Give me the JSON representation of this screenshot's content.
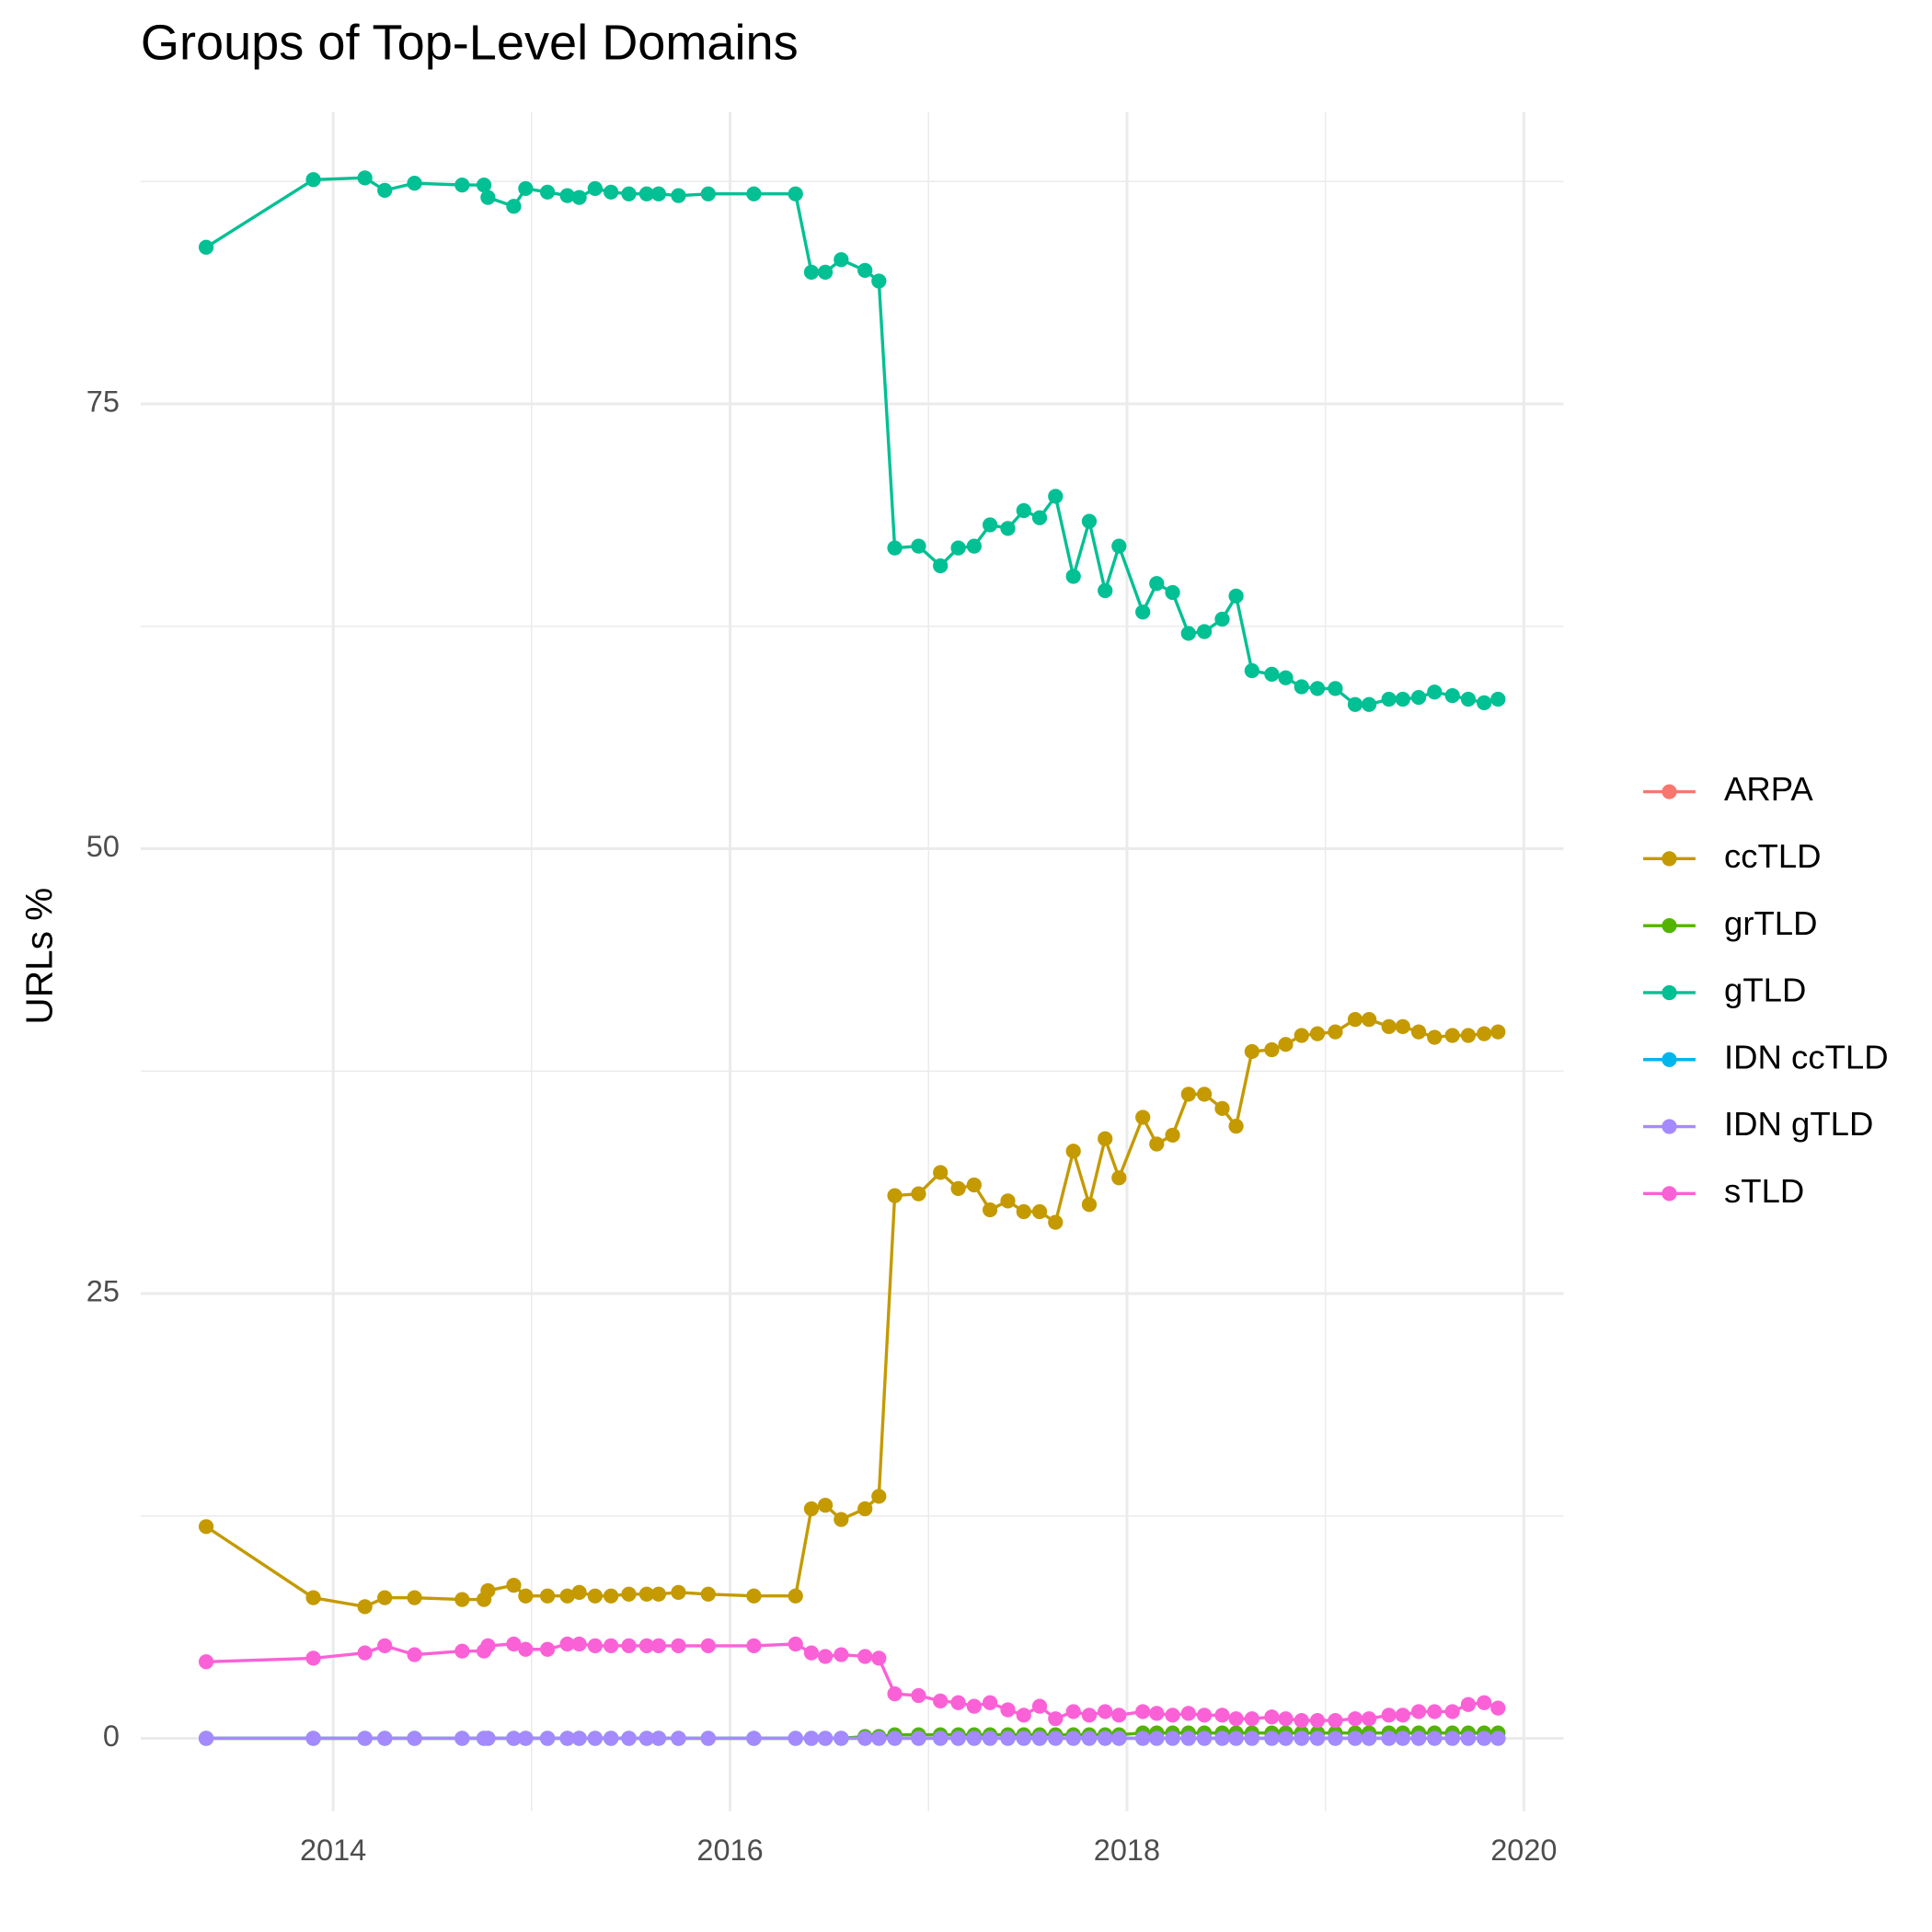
{
  "chart_data": {
    "type": "line",
    "title": "Groups of Top-Level Domains",
    "y_label": "URLs %",
    "x": [
      2013.36,
      2013.9,
      2014.16,
      2014.26,
      2014.41,
      2014.65,
      2014.76,
      2014.78,
      2014.91,
      2014.97,
      2015.08,
      2015.18,
      2015.24,
      2015.32,
      2015.4,
      2015.49,
      2015.58,
      2015.64,
      2015.74,
      2015.89,
      2016.12,
      2016.33,
      2016.41,
      2016.48,
      2016.56,
      2016.68,
      2016.75,
      2016.83,
      2016.95,
      2017.06,
      2017.15,
      2017.23,
      2017.31,
      2017.4,
      2017.48,
      2017.56,
      2017.64,
      2017.73,
      2017.81,
      2017.89,
      2017.96,
      2018.08,
      2018.15,
      2018.23,
      2018.31,
      2018.39,
      2018.48,
      2018.55,
      2018.63,
      2018.73,
      2018.8,
      2018.88,
      2018.96,
      2019.05,
      2019.15,
      2019.22,
      2019.32,
      2019.39,
      2019.47,
      2019.55,
      2019.64,
      2019.72,
      2019.8,
      2019.87
    ],
    "series": [
      {
        "name": "ARPA",
        "color": "#F8766D",
        "values": [
          0,
          0,
          0,
          0,
          0,
          0,
          0,
          0,
          0,
          0,
          0,
          0,
          0,
          0,
          0,
          0,
          0,
          0,
          0,
          0,
          0,
          0,
          0,
          0,
          0,
          0,
          0,
          0,
          0,
          0,
          0,
          0,
          0,
          0,
          0,
          0,
          0,
          0,
          0,
          0,
          0,
          0,
          0,
          0,
          0,
          0,
          0,
          0,
          0,
          0,
          0,
          0,
          0,
          0,
          0,
          0,
          0,
          0,
          0,
          0,
          0,
          0,
          0,
          0
        ]
      },
      {
        "name": "ccTLD",
        "color": "#C49A00",
        "values": [
          11.9,
          7.9,
          7.4,
          7.9,
          7.9,
          7.8,
          7.8,
          8.3,
          8.6,
          8.0,
          8.0,
          8.0,
          8.2,
          8.0,
          8.0,
          8.1,
          8.1,
          8.1,
          8.2,
          8.1,
          8.0,
          8.0,
          12.9,
          13.1,
          12.3,
          12.9,
          13.6,
          30.5,
          30.6,
          31.8,
          30.9,
          31.1,
          29.7,
          30.2,
          29.6,
          29.6,
          29.0,
          33.0,
          30.0,
          33.7,
          31.5,
          34.9,
          33.4,
          33.9,
          36.2,
          36.2,
          35.4,
          34.4,
          38.6,
          38.7,
          39.0,
          39.5,
          39.6,
          39.7,
          40.4,
          40.4,
          40.0,
          40.0,
          39.7,
          39.4,
          39.5,
          39.5,
          39.6,
          39.7
        ]
      },
      {
        "name": "grTLD",
        "color": "#53B400",
        "values": [
          0,
          0,
          0,
          0,
          0,
          0,
          0,
          0,
          0,
          0,
          0,
          0,
          0,
          0,
          0,
          0,
          0,
          0,
          0,
          0,
          0,
          0,
          0,
          0,
          0,
          0.1,
          0.1,
          0.2,
          0.2,
          0.2,
          0.2,
          0.2,
          0.2,
          0.2,
          0.2,
          0.2,
          0.2,
          0.2,
          0.2,
          0.2,
          0.2,
          0.3,
          0.3,
          0.3,
          0.3,
          0.3,
          0.3,
          0.3,
          0.3,
          0.3,
          0.3,
          0.3,
          0.3,
          0.3,
          0.3,
          0.3,
          0.3,
          0.3,
          0.3,
          0.3,
          0.3,
          0.3,
          0.3,
          0.3
        ]
      },
      {
        "name": "gTLD",
        "color": "#00C094",
        "values": [
          83.8,
          87.6,
          87.7,
          87.0,
          87.4,
          87.3,
          87.3,
          86.6,
          86.1,
          87.1,
          86.9,
          86.7,
          86.6,
          87.1,
          86.9,
          86.8,
          86.8,
          86.8,
          86.7,
          86.8,
          86.8,
          86.8,
          82.4,
          82.4,
          83.1,
          82.5,
          81.9,
          66.9,
          67.0,
          65.9,
          66.9,
          67.0,
          68.2,
          68.0,
          69.0,
          68.6,
          69.8,
          65.3,
          68.4,
          64.5,
          67.0,
          63.3,
          64.9,
          64.4,
          62.1,
          62.2,
          62.9,
          64.2,
          60.0,
          59.8,
          59.6,
          59.1,
          59.0,
          59.0,
          58.1,
          58.1,
          58.4,
          58.4,
          58.5,
          58.8,
          58.6,
          58.4,
          58.2,
          58.4
        ]
      },
      {
        "name": "IDN ccTLD",
        "color": "#00B6EB",
        "values": [
          0,
          0,
          0,
          0,
          0,
          0,
          0,
          0,
          0,
          0,
          0,
          0,
          0,
          0,
          0,
          0,
          0,
          0,
          0,
          0,
          0,
          0,
          0,
          0,
          0,
          0,
          0,
          0,
          0,
          0,
          0,
          0,
          0,
          0,
          0,
          0,
          0,
          0,
          0,
          0,
          0,
          0,
          0,
          0,
          0,
          0,
          0,
          0,
          0,
          0,
          0,
          0,
          0,
          0,
          0,
          0,
          0,
          0,
          0,
          0,
          0,
          0,
          0,
          0
        ]
      },
      {
        "name": "IDN gTLD",
        "color": "#A58AFF",
        "values": [
          0,
          0,
          0,
          0,
          0,
          0,
          0,
          0,
          0,
          0,
          0,
          0,
          0,
          0,
          0,
          0,
          0,
          0,
          0,
          0,
          0,
          0,
          0,
          0,
          0,
          0,
          0,
          0,
          0,
          0,
          0,
          0,
          0,
          0,
          0,
          0,
          0,
          0,
          0,
          0,
          0,
          0,
          0,
          0,
          0,
          0,
          0,
          0,
          0,
          0,
          0,
          0,
          0,
          0,
          0,
          0,
          0,
          0,
          0,
          0,
          0,
          0,
          0,
          0
        ]
      },
      {
        "name": "sTLD",
        "color": "#FB61D7",
        "values": [
          4.3,
          4.5,
          4.8,
          5.2,
          4.7,
          4.9,
          4.9,
          5.2,
          5.3,
          5.0,
          5.0,
          5.3,
          5.3,
          5.2,
          5.2,
          5.2,
          5.2,
          5.2,
          5.2,
          5.2,
          5.2,
          5.3,
          4.8,
          4.6,
          4.7,
          4.6,
          4.5,
          2.5,
          2.4,
          2.1,
          2.0,
          1.8,
          2.0,
          1.6,
          1.3,
          1.8,
          1.1,
          1.5,
          1.3,
          1.5,
          1.3,
          1.5,
          1.4,
          1.3,
          1.4,
          1.3,
          1.3,
          1.1,
          1.1,
          1.2,
          1.1,
          1.0,
          1.0,
          1.0,
          1.1,
          1.1,
          1.3,
          1.3,
          1.5,
          1.5,
          1.5,
          1.9,
          2.0,
          1.7
        ]
      }
    ],
    "xlim": [
      2013.03,
      2020.2
    ],
    "xticks": [
      2014,
      2016,
      2018,
      2020
    ],
    "minor_xticks": [
      2015,
      2017,
      2019
    ],
    "ylim": [
      -4.1,
      91.4
    ],
    "yticks": [
      0,
      25,
      50,
      75
    ],
    "minor_yticks": [
      12.5,
      37.5,
      62.5,
      87.5
    ],
    "grid": true,
    "legend": "right"
  }
}
